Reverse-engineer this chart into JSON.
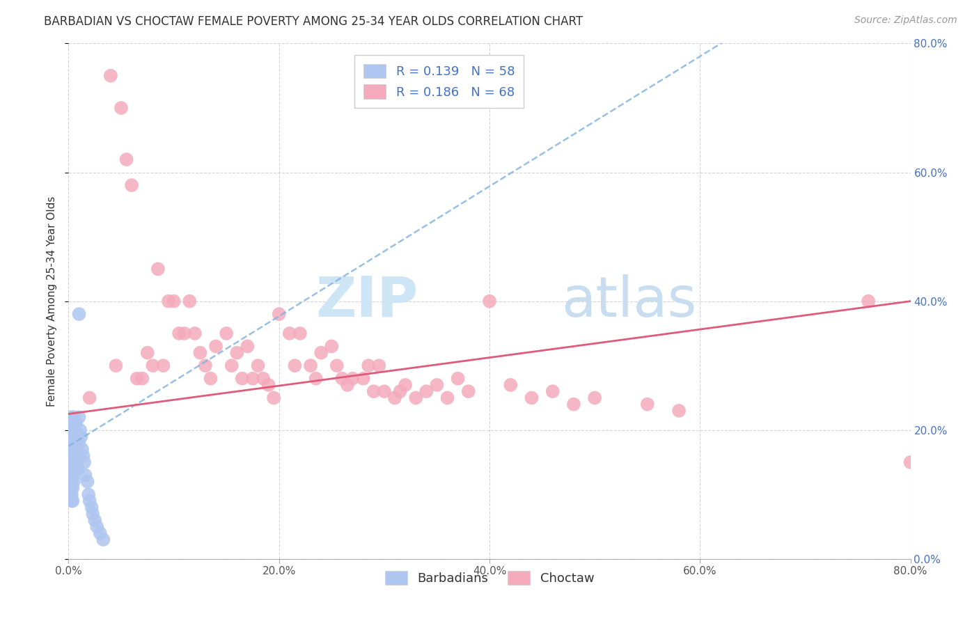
{
  "title": "BARBADIAN VS CHOCTAW FEMALE POVERTY AMONG 25-34 YEAR OLDS CORRELATION CHART",
  "source": "Source: ZipAtlas.com",
  "ylabel": "Female Poverty Among 25-34 Year Olds",
  "xlim": [
    0.0,
    0.8
  ],
  "ylim": [
    0.0,
    0.8
  ],
  "xticks": [
    0.0,
    0.2,
    0.4,
    0.6,
    0.8
  ],
  "yticks": [
    0.0,
    0.2,
    0.4,
    0.6,
    0.8
  ],
  "ytick_labels_right": [
    "0.0%",
    "20.0%",
    "40.0%",
    "60.0%",
    "80.0%"
  ],
  "xtick_labels": [
    "0.0%",
    "20.0%",
    "40.0%",
    "60.0%",
    "80.0%"
  ],
  "barbadian_color": "#aec6f0",
  "choctaw_color": "#f4aabc",
  "barbadian_line_color": "#7eb0e0",
  "choctaw_line_color": "#e05a7a",
  "watermark_zip": "ZIP",
  "watermark_atlas": "atlas",
  "watermark_color_zip": "#cde5f5",
  "watermark_color_atlas": "#c8ddf0",
  "R_barbadian": 0.139,
  "N_barbadian": 58,
  "R_choctaw": 0.186,
  "N_choctaw": 68,
  "legend_label_barbadian": "Barbadians",
  "legend_label_choctaw": "Choctaw",
  "barbadian_x": [
    0.001,
    0.001,
    0.001,
    0.001,
    0.001,
    0.002,
    0.002,
    0.002,
    0.002,
    0.002,
    0.002,
    0.002,
    0.003,
    0.003,
    0.003,
    0.003,
    0.003,
    0.003,
    0.003,
    0.004,
    0.004,
    0.004,
    0.004,
    0.004,
    0.004,
    0.005,
    0.005,
    0.005,
    0.005,
    0.005,
    0.006,
    0.006,
    0.006,
    0.007,
    0.007,
    0.007,
    0.008,
    0.008,
    0.009,
    0.009,
    0.01,
    0.01,
    0.011,
    0.012,
    0.013,
    0.014,
    0.015,
    0.016,
    0.018,
    0.019,
    0.02,
    0.022,
    0.023,
    0.025,
    0.027,
    0.03,
    0.033,
    0.01
  ],
  "barbadian_y": [
    0.2,
    0.18,
    0.16,
    0.14,
    0.12,
    0.22,
    0.19,
    0.17,
    0.15,
    0.13,
    0.11,
    0.1,
    0.21,
    0.18,
    0.16,
    0.14,
    0.12,
    0.1,
    0.09,
    0.2,
    0.17,
    0.15,
    0.13,
    0.11,
    0.09,
    0.22,
    0.19,
    0.16,
    0.14,
    0.12,
    0.2,
    0.17,
    0.14,
    0.21,
    0.18,
    0.15,
    0.19,
    0.16,
    0.18,
    0.14,
    0.22,
    0.18,
    0.2,
    0.19,
    0.17,
    0.16,
    0.15,
    0.13,
    0.12,
    0.1,
    0.09,
    0.08,
    0.07,
    0.06,
    0.05,
    0.04,
    0.03,
    0.38
  ],
  "choctaw_x": [
    0.02,
    0.04,
    0.045,
    0.05,
    0.055,
    0.06,
    0.065,
    0.07,
    0.075,
    0.08,
    0.085,
    0.09,
    0.095,
    0.1,
    0.105,
    0.11,
    0.115,
    0.12,
    0.125,
    0.13,
    0.135,
    0.14,
    0.15,
    0.155,
    0.16,
    0.165,
    0.17,
    0.175,
    0.18,
    0.185,
    0.19,
    0.195,
    0.2,
    0.21,
    0.215,
    0.22,
    0.23,
    0.235,
    0.24,
    0.25,
    0.255,
    0.26,
    0.265,
    0.27,
    0.28,
    0.285,
    0.29,
    0.295,
    0.3,
    0.31,
    0.315,
    0.32,
    0.33,
    0.34,
    0.35,
    0.36,
    0.37,
    0.38,
    0.4,
    0.42,
    0.44,
    0.46,
    0.48,
    0.5,
    0.55,
    0.58,
    0.76,
    0.8
  ],
  "choctaw_y": [
    0.25,
    0.75,
    0.3,
    0.7,
    0.62,
    0.58,
    0.28,
    0.28,
    0.32,
    0.3,
    0.45,
    0.3,
    0.4,
    0.4,
    0.35,
    0.35,
    0.4,
    0.35,
    0.32,
    0.3,
    0.28,
    0.33,
    0.35,
    0.3,
    0.32,
    0.28,
    0.33,
    0.28,
    0.3,
    0.28,
    0.27,
    0.25,
    0.38,
    0.35,
    0.3,
    0.35,
    0.3,
    0.28,
    0.32,
    0.33,
    0.3,
    0.28,
    0.27,
    0.28,
    0.28,
    0.3,
    0.26,
    0.3,
    0.26,
    0.25,
    0.26,
    0.27,
    0.25,
    0.26,
    0.27,
    0.25,
    0.28,
    0.26,
    0.4,
    0.27,
    0.25,
    0.26,
    0.24,
    0.25,
    0.24,
    0.23,
    0.4,
    0.15
  ],
  "background_color": "#ffffff",
  "grid_color": "#d0d0d0",
  "title_fontsize": 12,
  "axis_fontsize": 11,
  "tick_fontsize": 11,
  "source_fontsize": 10,
  "legend_fontsize": 13
}
